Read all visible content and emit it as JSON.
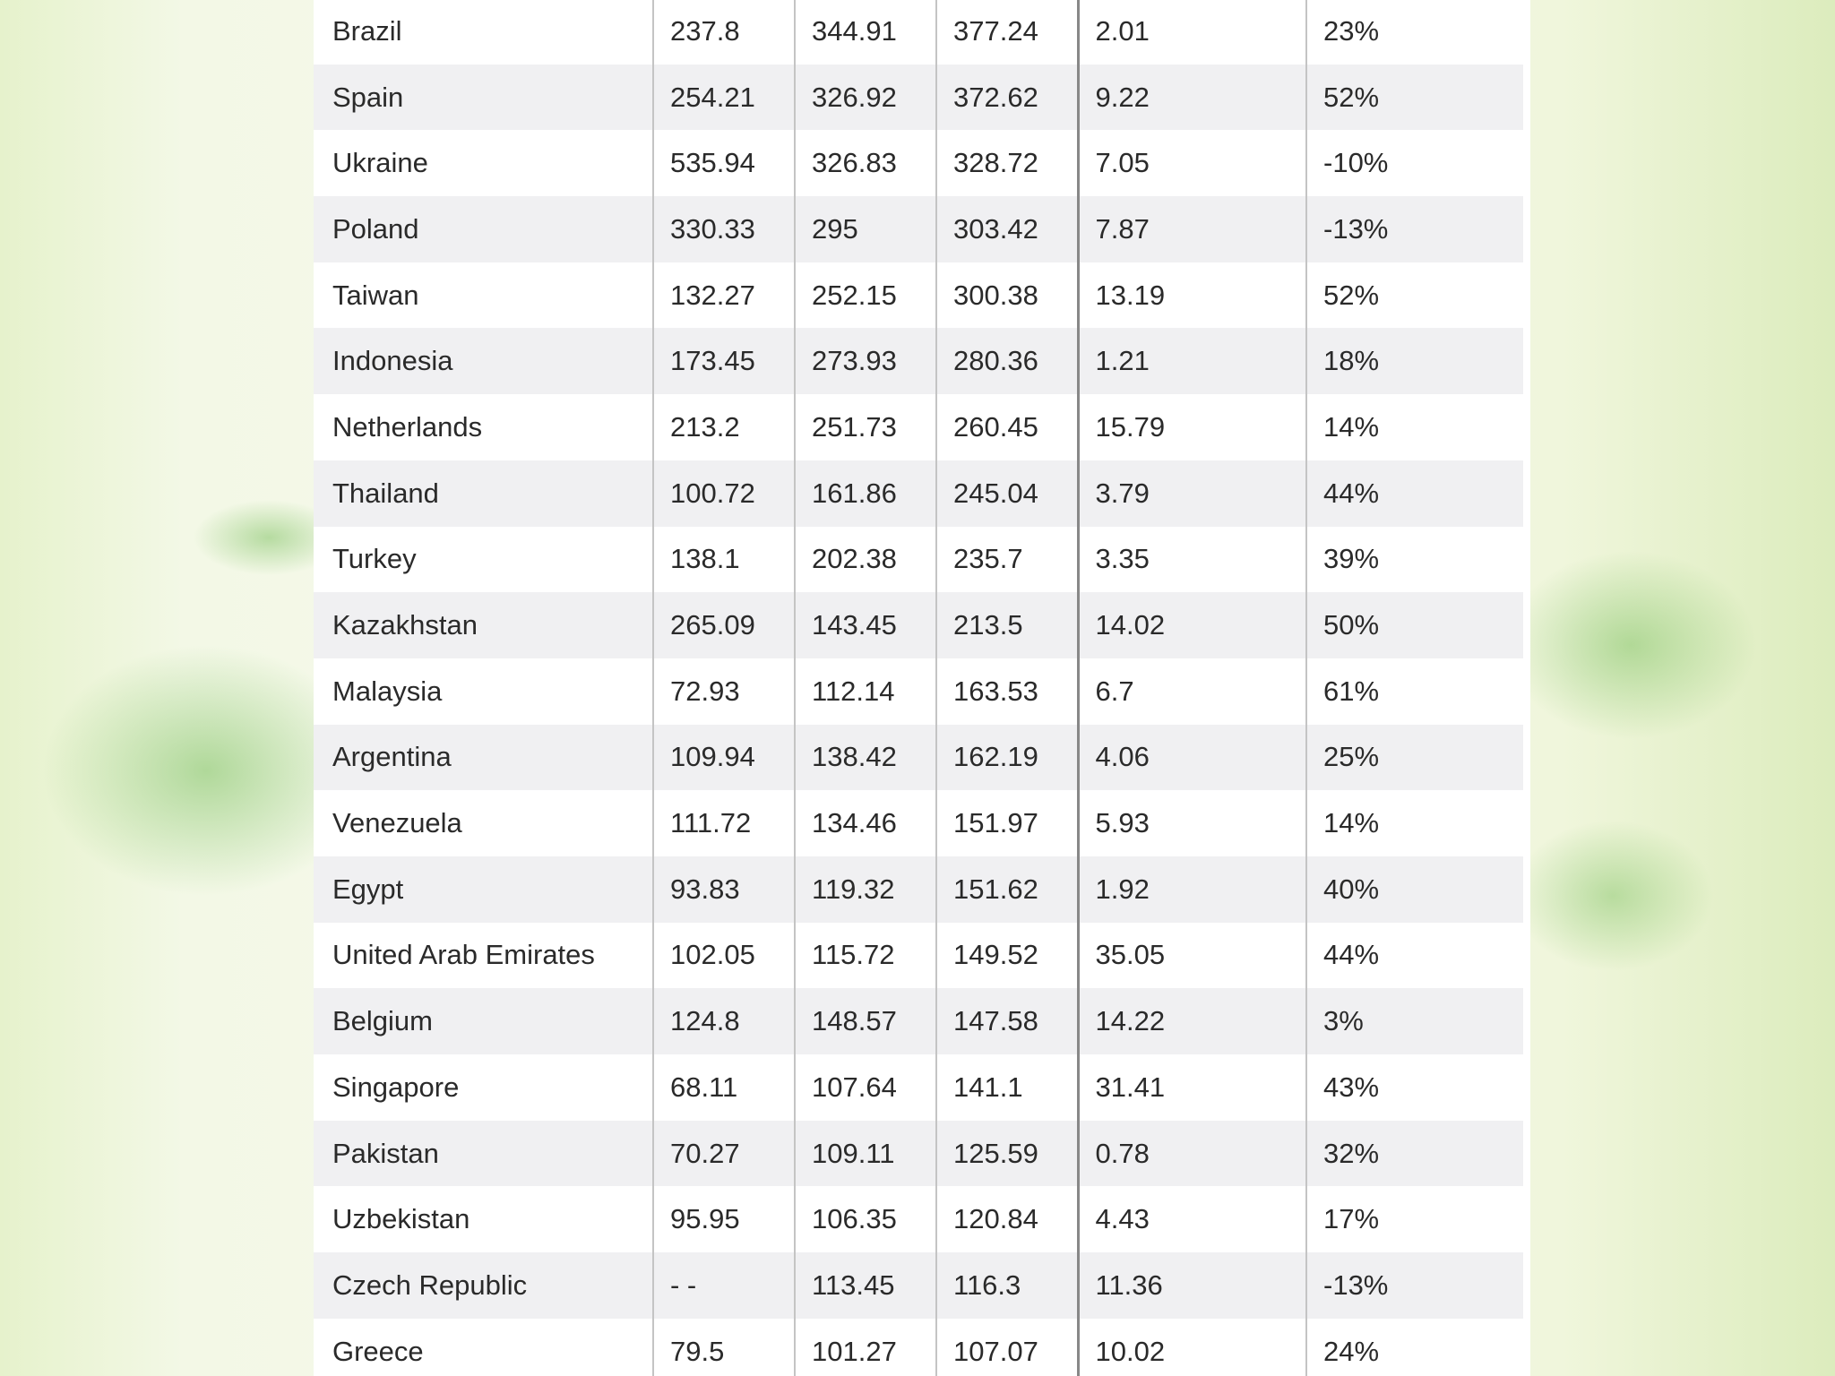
{
  "table": {
    "rows": [
      [
        "Brazil",
        "237.8",
        "344.91",
        "377.24",
        "2.01",
        "23%"
      ],
      [
        "Spain",
        "254.21",
        "326.92",
        "372.62",
        "9.22",
        "52%"
      ],
      [
        "Ukraine",
        "535.94",
        "326.83",
        "328.72",
        "7.05",
        "-10%"
      ],
      [
        "Poland",
        "330.33",
        "295",
        "303.42",
        "7.87",
        "-13%"
      ],
      [
        "Taiwan",
        "132.27",
        "252.15",
        "300.38",
        "13.19",
        "52%"
      ],
      [
        "Indonesia",
        "173.45",
        "273.93",
        "280.36",
        "1.21",
        "18%"
      ],
      [
        "Netherlands",
        "213.2",
        "251.73",
        "260.45",
        "15.79",
        "14%"
      ],
      [
        "Thailand",
        "100.72",
        "161.86",
        "245.04",
        "3.79",
        "44%"
      ],
      [
        "Turkey",
        "138.1",
        "202.38",
        "235.7",
        "3.35",
        "39%"
      ],
      [
        "Kazakhstan",
        "265.09",
        "143.45",
        "213.5",
        "14.02",
        "50%"
      ],
      [
        "Malaysia",
        "72.93",
        "112.14",
        "163.53",
        "6.7",
        "61%"
      ],
      [
        "Argentina",
        "109.94",
        "138.42",
        "162.19",
        "4.06",
        "25%"
      ],
      [
        "Venezuela",
        "111.72",
        "134.46",
        "151.97",
        "5.93",
        "14%"
      ],
      [
        "Egypt",
        "93.83",
        "119.32",
        "151.62",
        "1.92",
        "40%"
      ],
      [
        "United Arab Emirates",
        "102.05",
        "115.72",
        "149.52",
        "35.05",
        "44%"
      ],
      [
        "Belgium",
        "124.8",
        "148.57",
        "147.58",
        "14.22",
        "3%"
      ],
      [
        "Singapore",
        "68.11",
        "107.64",
        "141.1",
        "31.41",
        "43%"
      ],
      [
        "Pakistan",
        "70.27",
        "109.11",
        "125.59",
        "0.78",
        "32%"
      ],
      [
        "Uzbekistan",
        "95.95",
        "106.35",
        "120.84",
        "4.43",
        "17%"
      ],
      [
        "Czech Republic",
        "- -",
        "113.45",
        "116.3",
        "11.36",
        "-13%"
      ],
      [
        "Greece",
        "79.5",
        "101.27",
        "107.07",
        "10.02",
        "24%"
      ]
    ]
  }
}
